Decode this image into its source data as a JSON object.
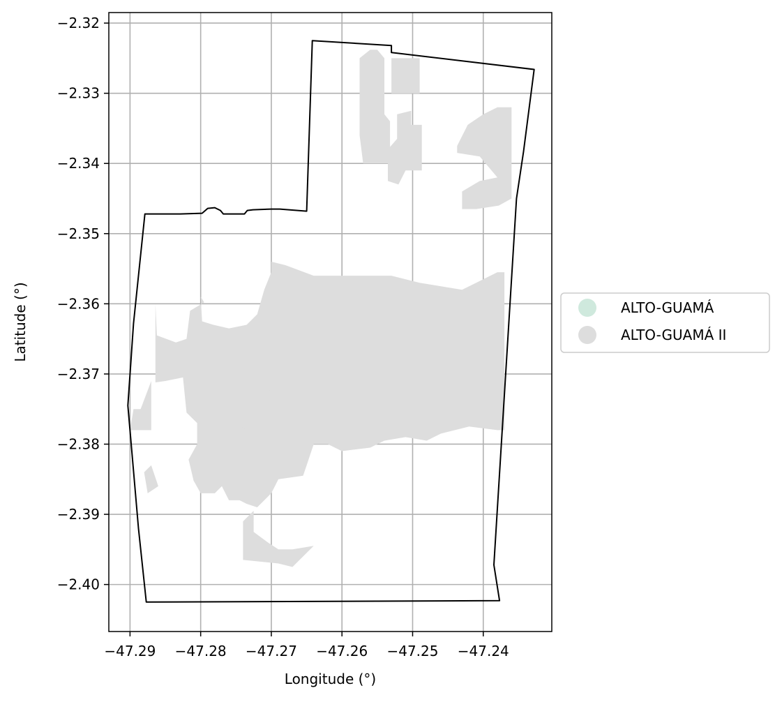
{
  "chart_data": {
    "type": "map",
    "xlabel": "Longitude (°)",
    "ylabel": "Latitude (°)",
    "xlim": [
      -47.293,
      -47.2303
    ],
    "ylim": [
      -2.4067,
      -2.3185
    ],
    "grid": true,
    "x_ticks": [
      {
        "value": -47.29,
        "label": "−47.29"
      },
      {
        "value": -47.28,
        "label": "−47.28"
      },
      {
        "value": -47.27,
        "label": "−47.27"
      },
      {
        "value": -47.26,
        "label": "−47.26"
      },
      {
        "value": -47.25,
        "label": "−47.25"
      },
      {
        "value": -47.24,
        "label": "−47.24"
      }
    ],
    "y_ticks": [
      {
        "value": -2.32,
        "label": "−2.32"
      },
      {
        "value": -2.33,
        "label": "−2.33"
      },
      {
        "value": -2.34,
        "label": "−2.34"
      },
      {
        "value": -2.35,
        "label": "−2.35"
      },
      {
        "value": -2.36,
        "label": "−2.36"
      },
      {
        "value": -2.37,
        "label": "−2.37"
      },
      {
        "value": -2.38,
        "label": "−2.38"
      },
      {
        "value": -2.39,
        "label": "−2.39"
      },
      {
        "value": -2.4,
        "label": "−2.40"
      }
    ],
    "legend": {
      "placement": "center-right-outside",
      "entries": [
        {
          "label": "ALTO-GUAMÁ",
          "color": "#cfe9dd"
        },
        {
          "label": "ALTO-GUAMÁ II",
          "color": "#dddddd"
        }
      ]
    },
    "boundary": [
      [
        -47.2879,
        -2.3472
      ],
      [
        -47.2829,
        -2.3472
      ],
      [
        -47.2798,
        -2.3471
      ],
      [
        -47.279,
        -2.3464
      ],
      [
        -47.278,
        -2.3463
      ],
      [
        -47.2772,
        -2.3467
      ],
      [
        -47.2768,
        -2.3472
      ],
      [
        -47.2738,
        -2.3472
      ],
      [
        -47.2734,
        -2.3467
      ],
      [
        -47.2726,
        -2.3466
      ],
      [
        -47.27,
        -2.3465
      ],
      [
        -47.2688,
        -2.3465
      ],
      [
        -47.265,
        -2.3468
      ],
      [
        -47.2642,
        -2.3225
      ],
      [
        -47.253,
        -2.3232
      ],
      [
        -47.253,
        -2.3242
      ],
      [
        -47.2328,
        -2.3266
      ],
      [
        -47.2343,
        -2.3383
      ],
      [
        -47.2353,
        -2.345
      ],
      [
        -47.2385,
        -2.3972
      ],
      [
        -47.2377,
        -2.4023
      ],
      [
        -47.2877,
        -2.4025
      ],
      [
        -47.2888,
        -2.392
      ],
      [
        -47.2903,
        -2.3745
      ],
      [
        -47.2895,
        -2.3628
      ]
    ],
    "fill_color": "#dddddd",
    "regions": [
      [
        [
          -47.255,
          -2.3238
        ],
        [
          -47.254,
          -2.325
        ],
        [
          -47.254,
          -2.333
        ],
        [
          -47.2532,
          -2.334
        ],
        [
          -47.2532,
          -2.34
        ],
        [
          -47.257,
          -2.34
        ],
        [
          -47.2575,
          -2.336
        ],
        [
          -47.2575,
          -2.325
        ],
        [
          -47.256,
          -2.3238
        ]
      ],
      [
        [
          -47.253,
          -2.325
        ],
        [
          -47.249,
          -2.325
        ],
        [
          -47.249,
          -2.33
        ],
        [
          -47.253,
          -2.33
        ]
      ],
      [
        [
          -47.2522,
          -2.333
        ],
        [
          -47.2502,
          -2.3325
        ],
        [
          -47.2502,
          -2.3345
        ],
        [
          -47.2487,
          -2.3345
        ],
        [
          -47.2487,
          -2.341
        ],
        [
          -47.251,
          -2.341
        ],
        [
          -47.252,
          -2.343
        ],
        [
          -47.2535,
          -2.3425
        ],
        [
          -47.2535,
          -2.338
        ],
        [
          -47.2522,
          -2.3365
        ]
      ],
      [
        [
          -47.2437,
          -2.3375
        ],
        [
          -47.2422,
          -2.3345
        ],
        [
          -47.24,
          -2.333
        ],
        [
          -47.238,
          -2.332
        ],
        [
          -47.236,
          -2.332
        ],
        [
          -47.236,
          -2.345
        ],
        [
          -47.2378,
          -2.346
        ],
        [
          -47.241,
          -2.3465
        ],
        [
          -47.243,
          -2.3465
        ],
        [
          -47.243,
          -2.344
        ],
        [
          -47.2405,
          -2.3425
        ],
        [
          -47.238,
          -2.342
        ],
        [
          -47.2405,
          -2.339
        ],
        [
          -47.2437,
          -2.3385
        ]
      ],
      [
        [
          -47.2782,
          -2.363
        ],
        [
          -47.2798,
          -2.3625
        ],
        [
          -47.28,
          -2.359
        ],
        [
          -47.2795,
          -2.3598
        ],
        [
          -47.2815,
          -2.361
        ],
        [
          -47.282,
          -2.365
        ],
        [
          -47.2835,
          -2.3655
        ],
        [
          -47.2862,
          -2.3645
        ],
        [
          -47.2864,
          -2.36
        ],
        [
          -47.2864,
          -2.3712
        ],
        [
          -47.285,
          -2.371
        ],
        [
          -47.2825,
          -2.3705
        ],
        [
          -47.282,
          -2.3755
        ],
        [
          -47.2805,
          -2.377
        ],
        [
          -47.2805,
          -2.38
        ],
        [
          -47.2817,
          -2.3822
        ],
        [
          -47.281,
          -2.3852
        ],
        [
          -47.28,
          -2.387
        ],
        [
          -47.278,
          -2.387
        ],
        [
          -47.277,
          -2.386
        ],
        [
          -47.276,
          -2.388
        ],
        [
          -47.2745,
          -2.388
        ],
        [
          -47.2735,
          -2.3885
        ],
        [
          -47.272,
          -2.389
        ],
        [
          -47.27,
          -2.387
        ],
        [
          -47.269,
          -2.385
        ],
        [
          -47.2655,
          -2.3845
        ],
        [
          -47.265,
          -2.383
        ],
        [
          -47.264,
          -2.38
        ],
        [
          -47.262,
          -2.38
        ],
        [
          -47.26,
          -2.381
        ],
        [
          -47.256,
          -2.3805
        ],
        [
          -47.254,
          -2.3795
        ],
        [
          -47.251,
          -2.379
        ],
        [
          -47.248,
          -2.3795
        ],
        [
          -47.246,
          -2.3785
        ],
        [
          -47.242,
          -2.3775
        ],
        [
          -47.238,
          -2.378
        ],
        [
          -47.237,
          -2.378
        ],
        [
          -47.237,
          -2.3555
        ],
        [
          -47.238,
          -2.3555
        ],
        [
          -47.243,
          -2.358
        ],
        [
          -47.249,
          -2.357
        ],
        [
          -47.253,
          -2.356
        ],
        [
          -47.257,
          -2.356
        ],
        [
          -47.262,
          -2.356
        ],
        [
          -47.264,
          -2.356
        ],
        [
          -47.268,
          -2.3545
        ],
        [
          -47.27,
          -2.354
        ],
        [
          -47.27,
          -2.3555
        ],
        [
          -47.271,
          -2.358
        ],
        [
          -47.272,
          -2.3615
        ],
        [
          -47.2735,
          -2.363
        ],
        [
          -47.276,
          -2.3635
        ],
        [
          -47.2782,
          -2.363
        ]
      ],
      [
        [
          -47.275,
          -2.372
        ],
        [
          -47.275,
          -2.377
        ],
        [
          -47.272,
          -2.379
        ],
        [
          -47.269,
          -2.38
        ],
        [
          -47.27,
          -2.3725
        ],
        [
          -47.272,
          -2.371
        ]
      ],
      [
        [
          -47.2885,
          -2.375
        ],
        [
          -47.287,
          -2.371
        ],
        [
          -47.287,
          -2.378
        ],
        [
          -47.29,
          -2.378
        ],
        [
          -47.2895,
          -2.375
        ]
      ],
      [
        [
          -47.288,
          -2.384
        ],
        [
          -47.287,
          -2.383
        ],
        [
          -47.286,
          -2.386
        ],
        [
          -47.2875,
          -2.387
        ]
      ],
      [
        [
          -47.274,
          -2.391
        ],
        [
          -47.2725,
          -2.3895
        ],
        [
          -47.2725,
          -2.3925
        ],
        [
          -47.2705,
          -2.394
        ],
        [
          -47.269,
          -2.395
        ],
        [
          -47.267,
          -2.395
        ],
        [
          -47.264,
          -2.3945
        ],
        [
          -47.267,
          -2.3975
        ],
        [
          -47.269,
          -2.397
        ],
        [
          -47.274,
          -2.3965
        ]
      ]
    ]
  }
}
